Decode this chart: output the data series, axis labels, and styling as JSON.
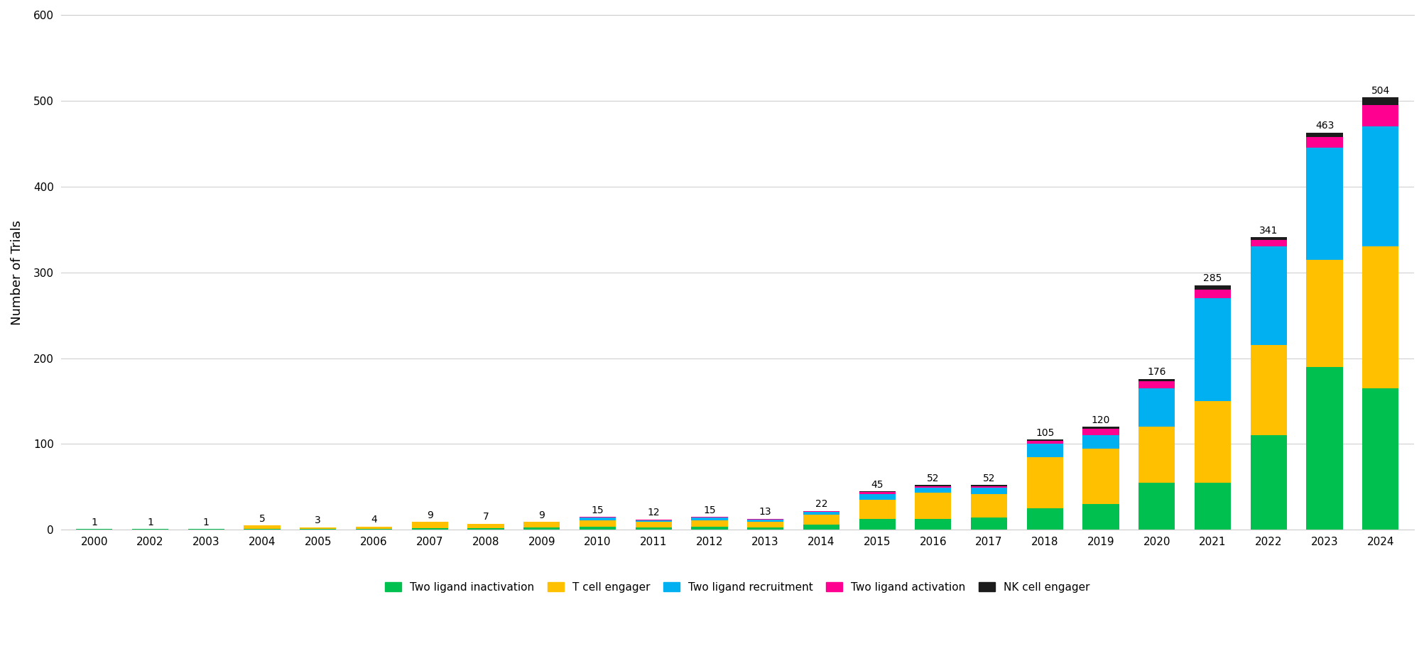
{
  "years": [
    2000,
    2002,
    2003,
    2004,
    2005,
    2006,
    2007,
    2008,
    2009,
    2010,
    2011,
    2012,
    2013,
    2014,
    2015,
    2016,
    2017,
    2018,
    2019,
    2020,
    2021,
    2022,
    2023,
    2024
  ],
  "totals": [
    1,
    1,
    1,
    5,
    3,
    4,
    9,
    7,
    9,
    15,
    12,
    15,
    13,
    22,
    45,
    52,
    52,
    105,
    120,
    176,
    285,
    341,
    463,
    504
  ],
  "series": {
    "Two ligand inactivation": [
      1,
      1,
      1,
      1,
      1,
      1,
      2,
      2,
      3,
      4,
      3,
      4,
      3,
      6,
      13,
      13,
      14,
      25,
      30,
      55,
      55,
      110,
      190,
      165
    ],
    "T cell engager": [
      0,
      0,
      0,
      4,
      2,
      3,
      7,
      5,
      6,
      7,
      6,
      7,
      6,
      12,
      22,
      30,
      28,
      60,
      65,
      65,
      95,
      105,
      125,
      165
    ],
    "Two ligand recruitment": [
      0,
      0,
      0,
      0,
      0,
      0,
      0,
      0,
      0,
      3,
      2,
      3,
      3,
      3,
      7,
      6,
      7,
      15,
      15,
      45,
      120,
      115,
      130,
      140
    ],
    "Two ligand activation": [
      0,
      0,
      0,
      0,
      0,
      0,
      0,
      0,
      0,
      1,
      1,
      1,
      1,
      1,
      2,
      2,
      2,
      4,
      8,
      8,
      10,
      8,
      13,
      25
    ],
    "NK cell engager": [
      0,
      0,
      0,
      0,
      0,
      0,
      0,
      0,
      0,
      0,
      0,
      0,
      0,
      0,
      1,
      1,
      1,
      1,
      2,
      3,
      5,
      3,
      5,
      9
    ]
  },
  "colors": {
    "Two ligand inactivation": "#00C050",
    "T cell engager": "#FFC000",
    "Two ligand recruitment": "#00B0F0",
    "Two ligand activation": "#FF0090",
    "NK cell engager": "#1C1C1C"
  },
  "ylabel": "Number of Trials",
  "ylim": [
    0,
    600
  ],
  "yticks": [
    0,
    100,
    200,
    300,
    400,
    500,
    600
  ],
  "background_color": "#ffffff",
  "bar_width": 0.65,
  "legend_order": [
    "Two ligand inactivation",
    "T cell engager",
    "Two ligand recruitment",
    "Two ligand activation",
    "NK cell engager"
  ]
}
